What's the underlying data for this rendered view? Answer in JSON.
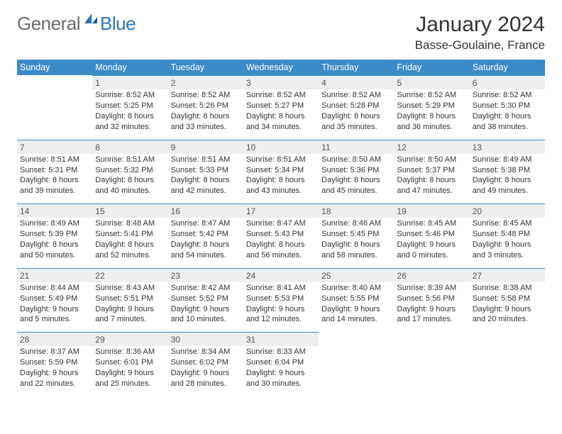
{
  "logo": {
    "general": "General",
    "blue": "Blue"
  },
  "header": {
    "month_title": "January 2024",
    "location": "Basse-Goulaine, France"
  },
  "colors": {
    "header_bg": "#3b8bc9",
    "header_text": "#ffffff",
    "daynum_bg": "#eceeef",
    "daynum_border": "#3b8bc9",
    "body_text": "#333333",
    "logo_gray": "#6b6b6b",
    "logo_blue": "#2a77b8"
  },
  "typography": {
    "title_fontsize": 30,
    "location_fontsize": 17,
    "dayheader_fontsize": 12.5,
    "cell_fontsize": 11
  },
  "days_of_week": [
    "Sunday",
    "Monday",
    "Tuesday",
    "Wednesday",
    "Thursday",
    "Friday",
    "Saturday"
  ],
  "weeks": [
    [
      null,
      {
        "n": "1",
        "sr": "Sunrise: 8:52 AM",
        "ss": "Sunset: 5:25 PM",
        "d1": "Daylight: 8 hours",
        "d2": "and 32 minutes."
      },
      {
        "n": "2",
        "sr": "Sunrise: 8:52 AM",
        "ss": "Sunset: 5:26 PM",
        "d1": "Daylight: 8 hours",
        "d2": "and 33 minutes."
      },
      {
        "n": "3",
        "sr": "Sunrise: 8:52 AM",
        "ss": "Sunset: 5:27 PM",
        "d1": "Daylight: 8 hours",
        "d2": "and 34 minutes."
      },
      {
        "n": "4",
        "sr": "Sunrise: 8:52 AM",
        "ss": "Sunset: 5:28 PM",
        "d1": "Daylight: 8 hours",
        "d2": "and 35 minutes."
      },
      {
        "n": "5",
        "sr": "Sunrise: 8:52 AM",
        "ss": "Sunset: 5:29 PM",
        "d1": "Daylight: 8 hours",
        "d2": "and 36 minutes."
      },
      {
        "n": "6",
        "sr": "Sunrise: 8:52 AM",
        "ss": "Sunset: 5:30 PM",
        "d1": "Daylight: 8 hours",
        "d2": "and 38 minutes."
      }
    ],
    [
      {
        "n": "7",
        "sr": "Sunrise: 8:51 AM",
        "ss": "Sunset: 5:31 PM",
        "d1": "Daylight: 8 hours",
        "d2": "and 39 minutes."
      },
      {
        "n": "8",
        "sr": "Sunrise: 8:51 AM",
        "ss": "Sunset: 5:32 PM",
        "d1": "Daylight: 8 hours",
        "d2": "and 40 minutes."
      },
      {
        "n": "9",
        "sr": "Sunrise: 8:51 AM",
        "ss": "Sunset: 5:33 PM",
        "d1": "Daylight: 8 hours",
        "d2": "and 42 minutes."
      },
      {
        "n": "10",
        "sr": "Sunrise: 8:51 AM",
        "ss": "Sunset: 5:34 PM",
        "d1": "Daylight: 8 hours",
        "d2": "and 43 minutes."
      },
      {
        "n": "11",
        "sr": "Sunrise: 8:50 AM",
        "ss": "Sunset: 5:36 PM",
        "d1": "Daylight: 8 hours",
        "d2": "and 45 minutes."
      },
      {
        "n": "12",
        "sr": "Sunrise: 8:50 AM",
        "ss": "Sunset: 5:37 PM",
        "d1": "Daylight: 8 hours",
        "d2": "and 47 minutes."
      },
      {
        "n": "13",
        "sr": "Sunrise: 8:49 AM",
        "ss": "Sunset: 5:38 PM",
        "d1": "Daylight: 8 hours",
        "d2": "and 49 minutes."
      }
    ],
    [
      {
        "n": "14",
        "sr": "Sunrise: 8:49 AM",
        "ss": "Sunset: 5:39 PM",
        "d1": "Daylight: 8 hours",
        "d2": "and 50 minutes."
      },
      {
        "n": "15",
        "sr": "Sunrise: 8:48 AM",
        "ss": "Sunset: 5:41 PM",
        "d1": "Daylight: 8 hours",
        "d2": "and 52 minutes."
      },
      {
        "n": "16",
        "sr": "Sunrise: 8:47 AM",
        "ss": "Sunset: 5:42 PM",
        "d1": "Daylight: 8 hours",
        "d2": "and 54 minutes."
      },
      {
        "n": "17",
        "sr": "Sunrise: 8:47 AM",
        "ss": "Sunset: 5:43 PM",
        "d1": "Daylight: 8 hours",
        "d2": "and 56 minutes."
      },
      {
        "n": "18",
        "sr": "Sunrise: 8:46 AM",
        "ss": "Sunset: 5:45 PM",
        "d1": "Daylight: 8 hours",
        "d2": "and 58 minutes."
      },
      {
        "n": "19",
        "sr": "Sunrise: 8:45 AM",
        "ss": "Sunset: 5:46 PM",
        "d1": "Daylight: 9 hours",
        "d2": "and 0 minutes."
      },
      {
        "n": "20",
        "sr": "Sunrise: 8:45 AM",
        "ss": "Sunset: 5:48 PM",
        "d1": "Daylight: 9 hours",
        "d2": "and 3 minutes."
      }
    ],
    [
      {
        "n": "21",
        "sr": "Sunrise: 8:44 AM",
        "ss": "Sunset: 5:49 PM",
        "d1": "Daylight: 9 hours",
        "d2": "and 5 minutes."
      },
      {
        "n": "22",
        "sr": "Sunrise: 8:43 AM",
        "ss": "Sunset: 5:51 PM",
        "d1": "Daylight: 9 hours",
        "d2": "and 7 minutes."
      },
      {
        "n": "23",
        "sr": "Sunrise: 8:42 AM",
        "ss": "Sunset: 5:52 PM",
        "d1": "Daylight: 9 hours",
        "d2": "and 10 minutes."
      },
      {
        "n": "24",
        "sr": "Sunrise: 8:41 AM",
        "ss": "Sunset: 5:53 PM",
        "d1": "Daylight: 9 hours",
        "d2": "and 12 minutes."
      },
      {
        "n": "25",
        "sr": "Sunrise: 8:40 AM",
        "ss": "Sunset: 5:55 PM",
        "d1": "Daylight: 9 hours",
        "d2": "and 14 minutes."
      },
      {
        "n": "26",
        "sr": "Sunrise: 8:39 AM",
        "ss": "Sunset: 5:56 PM",
        "d1": "Daylight: 9 hours",
        "d2": "and 17 minutes."
      },
      {
        "n": "27",
        "sr": "Sunrise: 8:38 AM",
        "ss": "Sunset: 5:58 PM",
        "d1": "Daylight: 9 hours",
        "d2": "and 20 minutes."
      }
    ],
    [
      {
        "n": "28",
        "sr": "Sunrise: 8:37 AM",
        "ss": "Sunset: 5:59 PM",
        "d1": "Daylight: 9 hours",
        "d2": "and 22 minutes."
      },
      {
        "n": "29",
        "sr": "Sunrise: 8:36 AM",
        "ss": "Sunset: 6:01 PM",
        "d1": "Daylight: 9 hours",
        "d2": "and 25 minutes."
      },
      {
        "n": "30",
        "sr": "Sunrise: 8:34 AM",
        "ss": "Sunset: 6:02 PM",
        "d1": "Daylight: 9 hours",
        "d2": "and 28 minutes."
      },
      {
        "n": "31",
        "sr": "Sunrise: 8:33 AM",
        "ss": "Sunset: 6:04 PM",
        "d1": "Daylight: 9 hours",
        "d2": "and 30 minutes."
      },
      null,
      null,
      null
    ]
  ]
}
